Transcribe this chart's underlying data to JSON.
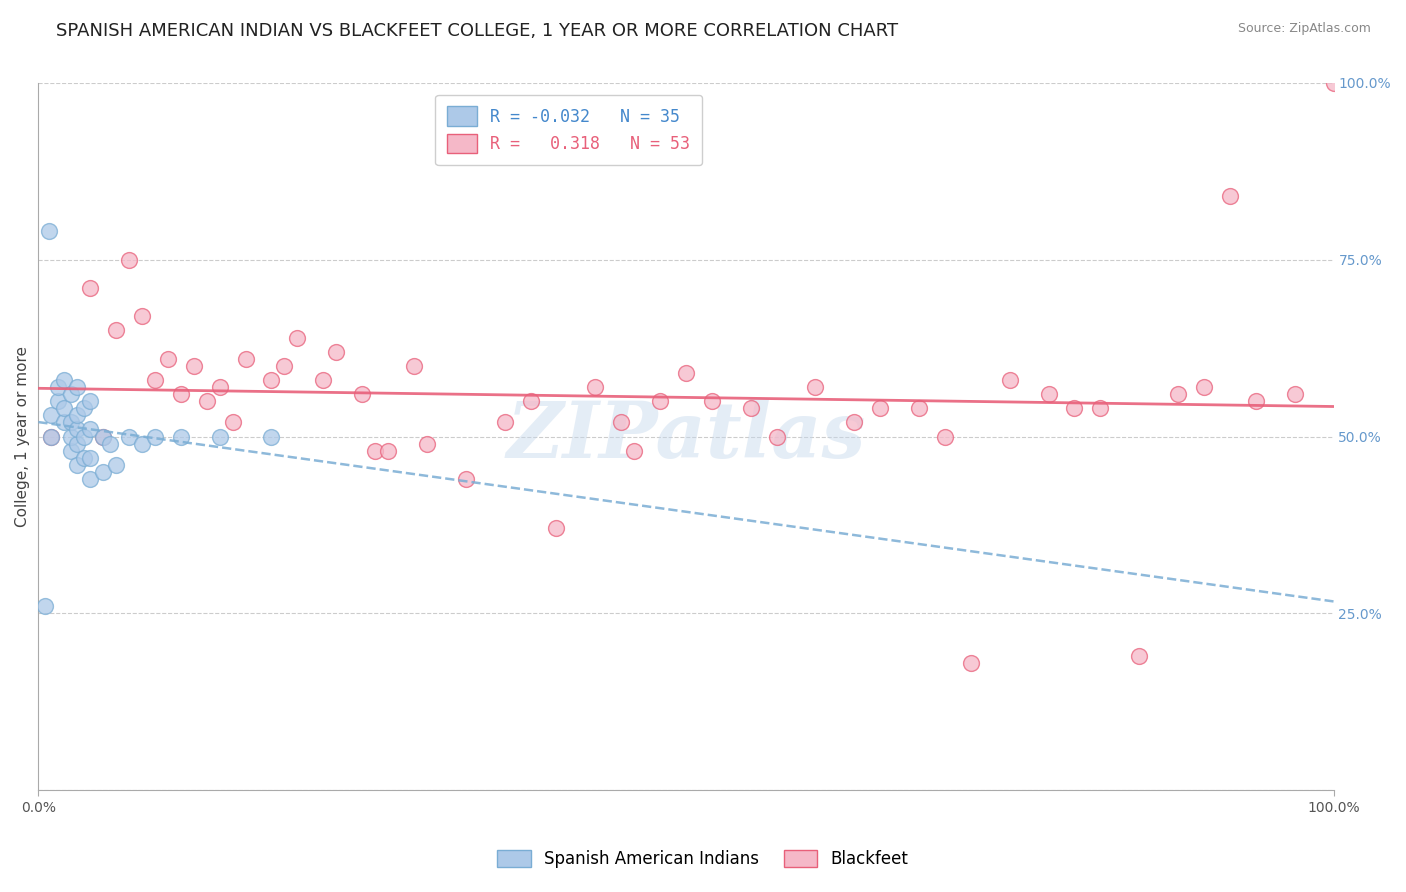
{
  "title": "SPANISH AMERICAN INDIAN VS BLACKFEET COLLEGE, 1 YEAR OR MORE CORRELATION CHART",
  "source": "Source: ZipAtlas.com",
  "ylabel": "College, 1 year or more",
  "xlim": [
    0.0,
    1.0
  ],
  "ylim": [
    0.0,
    1.0
  ],
  "blue_R": -0.032,
  "blue_N": 35,
  "pink_R": 0.318,
  "pink_N": 53,
  "blue_color": "#adc9e8",
  "pink_color": "#f5b8c8",
  "blue_edge_color": "#7aadd4",
  "pink_edge_color": "#e8607a",
  "blue_line_color": "#7aadd4",
  "pink_line_color": "#e8607a",
  "legend_label_blue": "Spanish American Indians",
  "legend_label_pink": "Blackfeet",
  "watermark": "ZIPatlas",
  "background_color": "#ffffff",
  "grid_color": "#cccccc",
  "blue_scatter_x": [
    0.005,
    0.01,
    0.01,
    0.015,
    0.015,
    0.02,
    0.02,
    0.02,
    0.025,
    0.025,
    0.025,
    0.025,
    0.03,
    0.03,
    0.03,
    0.03,
    0.03,
    0.035,
    0.035,
    0.035,
    0.04,
    0.04,
    0.04,
    0.04,
    0.05,
    0.05,
    0.055,
    0.06,
    0.07,
    0.08,
    0.09,
    0.11,
    0.14,
    0.18,
    0.008
  ],
  "blue_scatter_y": [
    0.26,
    0.5,
    0.53,
    0.55,
    0.57,
    0.52,
    0.54,
    0.58,
    0.48,
    0.5,
    0.52,
    0.56,
    0.46,
    0.49,
    0.51,
    0.53,
    0.57,
    0.47,
    0.5,
    0.54,
    0.44,
    0.47,
    0.51,
    0.55,
    0.45,
    0.5,
    0.49,
    0.46,
    0.5,
    0.49,
    0.5,
    0.5,
    0.5,
    0.5,
    0.79
  ],
  "pink_scatter_x": [
    0.01,
    0.04,
    0.05,
    0.06,
    0.07,
    0.08,
    0.09,
    0.1,
    0.11,
    0.12,
    0.13,
    0.14,
    0.15,
    0.16,
    0.18,
    0.19,
    0.2,
    0.22,
    0.23,
    0.25,
    0.26,
    0.27,
    0.29,
    0.3,
    0.33,
    0.36,
    0.38,
    0.4,
    0.43,
    0.45,
    0.46,
    0.48,
    0.5,
    0.52,
    0.55,
    0.57,
    0.6,
    0.63,
    0.65,
    0.68,
    0.7,
    0.72,
    0.75,
    0.78,
    0.8,
    0.82,
    0.85,
    0.88,
    0.9,
    0.92,
    0.94,
    0.97,
    1.0
  ],
  "pink_scatter_y": [
    0.5,
    0.71,
    0.5,
    0.65,
    0.75,
    0.67,
    0.58,
    0.61,
    0.56,
    0.6,
    0.55,
    0.57,
    0.52,
    0.61,
    0.58,
    0.6,
    0.64,
    0.58,
    0.62,
    0.56,
    0.48,
    0.48,
    0.6,
    0.49,
    0.44,
    0.52,
    0.55,
    0.37,
    0.57,
    0.52,
    0.48,
    0.55,
    0.59,
    0.55,
    0.54,
    0.5,
    0.57,
    0.52,
    0.54,
    0.54,
    0.5,
    0.18,
    0.58,
    0.56,
    0.54,
    0.54,
    0.19,
    0.56,
    0.57,
    0.84,
    0.55,
    0.56,
    1.0
  ],
  "title_fontsize": 13,
  "axis_label_fontsize": 11,
  "tick_fontsize": 10,
  "legend_fontsize": 12,
  "right_tick_color": "#6699cc"
}
